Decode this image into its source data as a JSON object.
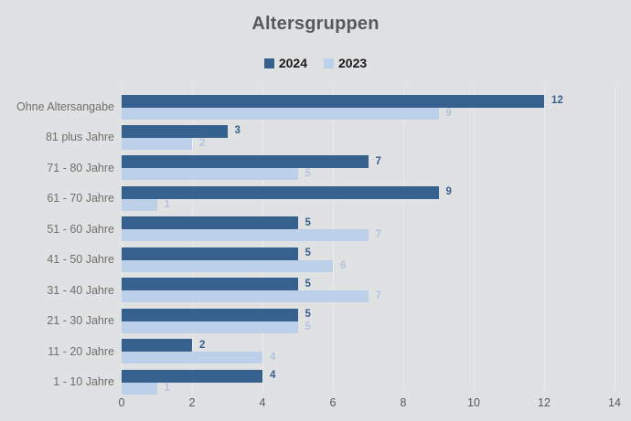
{
  "window": {
    "background_color": "#e0e1e2"
  },
  "chart_data": {
    "type": "bar",
    "orientation": "horizontal",
    "title": "Altersgruppen",
    "categories": [
      "Ohne Altersangabe",
      "81 plus Jahre",
      "71 - 80 Jahre",
      "61 - 70 Jahre",
      "51 - 60 Jahre",
      "41 - 50 Jahre",
      "31 - 40 Jahre",
      "21 - 30 Jahre",
      "11 - 20 Jahre",
      "1 - 10 Jahre"
    ],
    "series": [
      {
        "name": "2024",
        "color": "#36618f",
        "label_color": "#3a5f8e",
        "values": [
          12,
          3,
          7,
          9,
          5,
          5,
          5,
          5,
          2,
          4
        ]
      },
      {
        "name": "2023",
        "color": "#bdd0e9",
        "label_color": "#b3c5de",
        "values": [
          9,
          2,
          5,
          1,
          7,
          6,
          7,
          5,
          4,
          1
        ]
      }
    ],
    "xticks": [
      0,
      2,
      4,
      6,
      8,
      10,
      12,
      14
    ],
    "xlim": [
      0,
      14
    ],
    "xlabel": "",
    "ylabel": "",
    "grid": "vertical-subtle",
    "legend_position": "top-center",
    "value_labels": true,
    "title_color": "#58595b",
    "category_label_color": "#6e6e6e",
    "tick_label_color": "#5a5a5a",
    "gridline_color": "#ebebec"
  }
}
